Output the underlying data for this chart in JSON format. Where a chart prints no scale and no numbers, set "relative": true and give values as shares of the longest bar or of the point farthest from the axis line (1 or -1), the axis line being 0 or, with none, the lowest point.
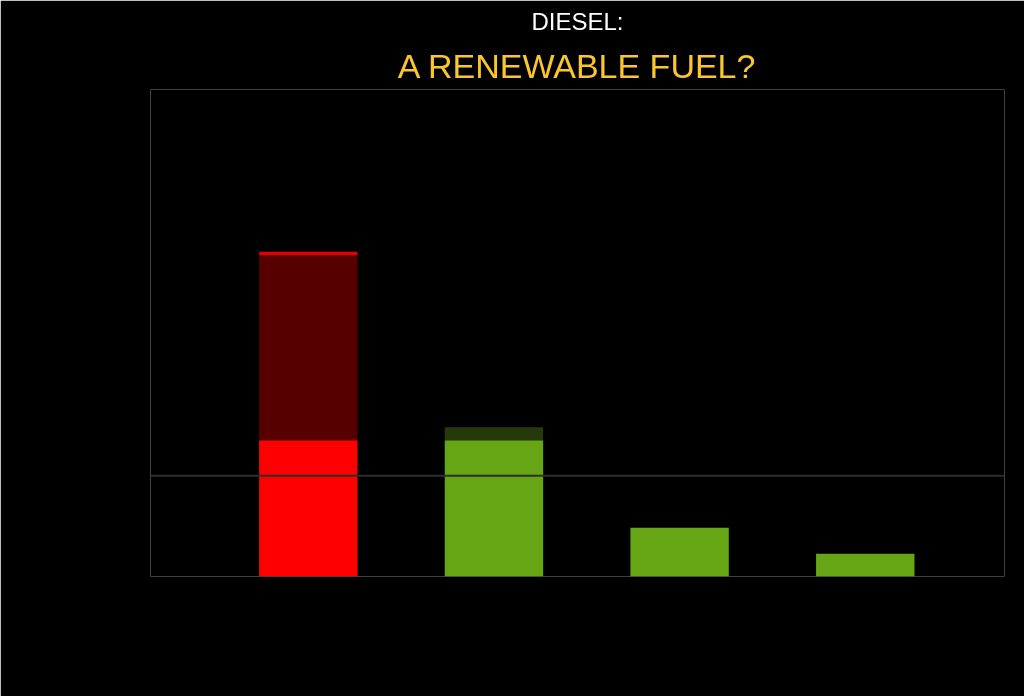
{
  "chart_data": {
    "type": "bar",
    "title": "DIESEL:",
    "subtitle": "A RENEWABLE FUEL?",
    "relative": true,
    "stacked": true,
    "categories": [
      null,
      null,
      null,
      null
    ],
    "series": [
      {
        "colors": [
          "#ff0000",
          "#66a614",
          "#66a614",
          "#66a614"
        ],
        "values": [
          0.42,
          0.42,
          0.15,
          0.07
        ]
      },
      {
        "colors": [
          "#570000",
          "#243a0b",
          null,
          null
        ],
        "values": [
          0.57,
          0.04,
          null,
          null
        ]
      },
      {
        "colors": [
          "#e40000",
          null,
          null,
          null
        ],
        "values": [
          0.01,
          null,
          null,
          null
        ]
      }
    ],
    "ref_lines": [
      {
        "axis": "y",
        "value": 0.31,
        "color": "#2e2e2e"
      }
    ]
  }
}
